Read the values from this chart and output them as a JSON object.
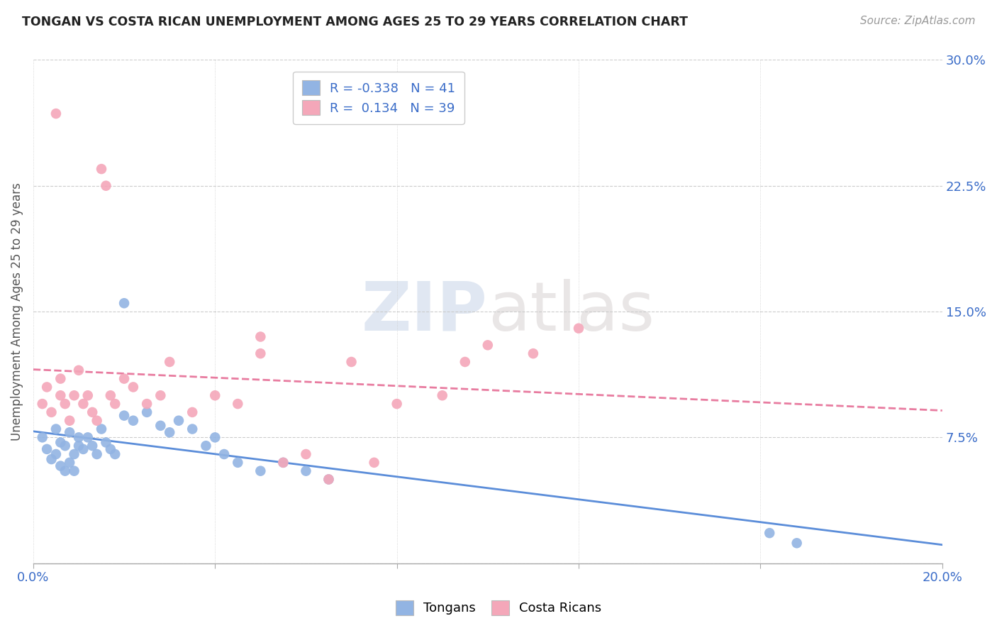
{
  "title": "TONGAN VS COSTA RICAN UNEMPLOYMENT AMONG AGES 25 TO 29 YEARS CORRELATION CHART",
  "source": "Source: ZipAtlas.com",
  "ylabel": "Unemployment Among Ages 25 to 29 years",
  "xlim": [
    0.0,
    0.2
  ],
  "ylim": [
    0.0,
    0.3
  ],
  "xticks": [
    0.0,
    0.04,
    0.08,
    0.12,
    0.16,
    0.2
  ],
  "yticks": [
    0.0,
    0.075,
    0.15,
    0.225,
    0.3
  ],
  "xtick_labels": [
    "0.0%",
    "",
    "",
    "",
    "",
    "20.0%"
  ],
  "ytick_labels": [
    "",
    "7.5%",
    "15.0%",
    "22.5%",
    "30.0%"
  ],
  "tongans_R": "-0.338",
  "tongans_N": "41",
  "costa_ricans_R": "0.134",
  "costa_ricans_N": "39",
  "color_tongans": "#92b4e3",
  "color_costa_ricans": "#f4a7b9",
  "color_trend_tongans": "#5b8dd9",
  "color_trend_costa_ricans": "#e87ca0",
  "tongans_x": [
    0.002,
    0.003,
    0.004,
    0.005,
    0.005,
    0.006,
    0.006,
    0.007,
    0.007,
    0.008,
    0.008,
    0.009,
    0.009,
    0.01,
    0.01,
    0.011,
    0.012,
    0.013,
    0.014,
    0.015,
    0.016,
    0.017,
    0.018,
    0.02,
    0.022,
    0.025,
    0.028,
    0.03,
    0.032,
    0.035,
    0.038,
    0.04,
    0.042,
    0.045,
    0.05,
    0.055,
    0.06,
    0.065,
    0.02,
    0.162,
    0.168
  ],
  "tongans_y": [
    0.075,
    0.068,
    0.062,
    0.08,
    0.065,
    0.058,
    0.072,
    0.055,
    0.07,
    0.06,
    0.078,
    0.065,
    0.055,
    0.07,
    0.075,
    0.068,
    0.075,
    0.07,
    0.065,
    0.08,
    0.072,
    0.068,
    0.065,
    0.088,
    0.085,
    0.09,
    0.082,
    0.078,
    0.085,
    0.08,
    0.07,
    0.075,
    0.065,
    0.06,
    0.055,
    0.06,
    0.055,
    0.05,
    0.155,
    0.018,
    0.012
  ],
  "costa_ricans_x": [
    0.002,
    0.003,
    0.004,
    0.005,
    0.006,
    0.006,
    0.007,
    0.008,
    0.009,
    0.01,
    0.011,
    0.012,
    0.013,
    0.014,
    0.015,
    0.016,
    0.017,
    0.018,
    0.02,
    0.022,
    0.025,
    0.028,
    0.03,
    0.035,
    0.04,
    0.045,
    0.05,
    0.055,
    0.06,
    0.065,
    0.07,
    0.075,
    0.08,
    0.09,
    0.095,
    0.1,
    0.11,
    0.12,
    0.05
  ],
  "costa_ricans_y": [
    0.095,
    0.105,
    0.09,
    0.268,
    0.1,
    0.11,
    0.095,
    0.085,
    0.1,
    0.115,
    0.095,
    0.1,
    0.09,
    0.085,
    0.235,
    0.225,
    0.1,
    0.095,
    0.11,
    0.105,
    0.095,
    0.1,
    0.12,
    0.09,
    0.1,
    0.095,
    0.135,
    0.06,
    0.065,
    0.05,
    0.12,
    0.06,
    0.095,
    0.1,
    0.12,
    0.13,
    0.125,
    0.14,
    0.125
  ],
  "watermark_top": "ZIP",
  "watermark_bot": "atlas",
  "background_color": "#ffffff",
  "grid_color": "#cccccc"
}
